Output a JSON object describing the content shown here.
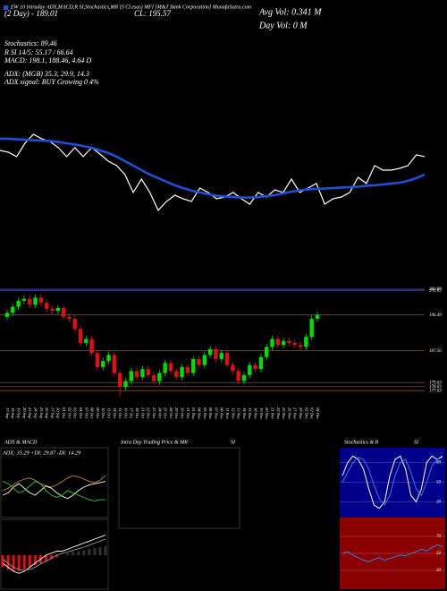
{
  "chart_data": [
    {
      "type": "line",
      "title": "EW 10 Intraday ADX,MACD,R SI,Stochastics,MR (S Cl.esas) MFI [M&T Bank Corporation] MunafaSutra.com",
      "annotations": [
        "(2 Day) - 189.01",
        "CL: 195.57",
        "Avg Vol: 0.341 M",
        "Day Vol: 0 M",
        "Stochastics: 89.46",
        "R SI 14/5: 55.17 / 66.64",
        "MACD: 198.1, 188.46, 4.64 D",
        "ADX: (MGB) 35.3, 29.9, 14.3",
        "ADX signal: BUY Growing 0 4%"
      ],
      "ylim": [
        170,
        205
      ],
      "series": [
        {
          "color": "#ffffff",
          "values": [
            195.2,
            194.5,
            192.8,
            198,
            201.5,
            199.8,
            198.7,
            196.3,
            192.8,
            196.3,
            192.8,
            196.3,
            193.8,
            191,
            189.3,
            185.8,
            178.8,
            184,
            178.8,
            171.8,
            175.3,
            177.7,
            176.3,
            175.3,
            180.5,
            178.8,
            176.3,
            177,
            178.8,
            176.3,
            174.2,
            178.8,
            177,
            179.8,
            178.8,
            184,
            178.8,
            180.5,
            182.3,
            174.2,
            176.3,
            177,
            178.8,
            184.7,
            182.3,
            189.3,
            187.5,
            187.5,
            188.2,
            189.3,
            193.5,
            192.8
          ]
        },
        {
          "color": "#1f4fd8",
          "values": [
            199.8,
            199.8,
            199.6,
            199.4,
            199.2,
            199.1,
            198.9,
            198.5,
            198,
            197.5,
            196.9,
            196.3,
            195.2,
            194.2,
            192.8,
            191,
            189.3,
            187.5,
            185.8,
            184.4,
            183,
            181.6,
            180.5,
            179.5,
            178.8,
            178.1,
            177.5,
            177.2,
            177,
            176.8,
            176.8,
            177,
            177.4,
            177.7,
            178.4,
            179.1,
            179.6,
            180,
            180.2,
            180.3,
            180.5,
            180.7,
            180.9,
            181,
            181.4,
            181.6,
            181.9,
            182.3,
            182.6,
            183.3,
            184.4,
            185.8
          ]
        }
      ]
    },
    {
      "type": "candlestick",
      "categories": [
        "17 Sep",
        "18 Sep",
        "19 Sep",
        "20 Sep",
        "23 Sep",
        "24 Sep",
        "25 Sep",
        "26 Sep",
        "27 Sep",
        "30 Sep",
        "01 Oct",
        "02 Oct",
        "03 Oct",
        "04 Oct",
        "07 Oct",
        "08 Oct",
        "09 Oct",
        "10 Oct",
        "11 Oct",
        "14 Oct",
        "15 Oct",
        "16 Oct",
        "17 Oct",
        "18 Oct",
        "21 Oct",
        "22 Oct",
        "23 Oct",
        "24 Oct",
        "25 Oct",
        "28 Oct",
        "29 Oct",
        "30 Oct",
        "31 Oct",
        "01 Nov",
        "04 Nov",
        "05 Nov",
        "06 Nov",
        "07 Nov",
        "08 Nov",
        "11 Nov",
        "12 Nov",
        "13 Nov",
        "14 Nov",
        "15 Nov",
        "18 Nov",
        "19 Nov",
        "20 Nov",
        "21 Nov",
        "22 Nov",
        "25 Nov",
        "26 Nov",
        "27 Nov",
        "29 Nov",
        "02 Dec",
        "03 Dec",
        "04 Dec"
      ],
      "open": [
        196,
        197,
        198.5,
        200,
        200.5,
        199,
        200.8,
        199.5,
        198,
        197.5,
        198.2,
        196,
        195.5,
        193,
        189.5,
        190.5,
        187,
        183.5,
        185,
        186.5,
        182,
        178.5,
        180,
        182.5,
        181,
        183,
        181.5,
        180,
        182,
        184.5,
        182.5,
        181,
        183.5,
        182,
        185.5,
        184,
        186.5,
        188,
        185.5,
        187,
        184,
        182.5,
        180,
        181.5,
        184,
        183,
        186,
        188.5,
        190.5,
        189,
        190,
        189.5,
        189,
        188.5,
        191,
        195.5
      ],
      "high": [
        197.8,
        199.3,
        200.8,
        201.3,
        201.3,
        201.6,
        201.6,
        200.3,
        198.8,
        199,
        199,
        196.8,
        196.3,
        193.8,
        191.3,
        191.3,
        187.8,
        185.8,
        187.3,
        187.3,
        182.8,
        180.8,
        183.3,
        183.3,
        183.8,
        183.8,
        182.3,
        182.8,
        185.3,
        185.3,
        183.3,
        184.3,
        184.3,
        186.3,
        186.3,
        187.3,
        188.8,
        188.8,
        187.8,
        187.8,
        184.8,
        183.3,
        182.3,
        184.8,
        184.8,
        186.8,
        189.3,
        191.3,
        191.3,
        190.8,
        190.8,
        190.3,
        189.8,
        191.8,
        196.3,
        197.3
      ],
      "low": [
        195.2,
        196.2,
        197.7,
        199.2,
        198.2,
        198.2,
        198.7,
        197.2,
        196.7,
        196.7,
        195.2,
        194.7,
        192.2,
        188.7,
        188.7,
        186.2,
        182.7,
        182.7,
        184.2,
        181.2,
        176.2,
        177.7,
        179.2,
        180.2,
        180.2,
        180.7,
        179.2,
        179.2,
        181.2,
        181.7,
        180.2,
        180.2,
        181.2,
        181.2,
        183.2,
        183.2,
        185.7,
        184.7,
        184.7,
        183.2,
        181.7,
        179.2,
        179.2,
        180.7,
        182.2,
        182.2,
        185.2,
        187.7,
        188.2,
        188.2,
        188.7,
        188.2,
        187.7,
        187.7,
        190.2,
        194.7
      ],
      "close": [
        197,
        198.5,
        200,
        200.5,
        199,
        200.8,
        199.5,
        198,
        197.5,
        198.2,
        196,
        195.5,
        193,
        189.5,
        190.5,
        187,
        183.5,
        185,
        186.5,
        182,
        178.5,
        180,
        182.5,
        181,
        183,
        181.5,
        180,
        182,
        184.5,
        182.5,
        181,
        183.5,
        182,
        185.5,
        184,
        186.5,
        188,
        185.5,
        187,
        184,
        182.5,
        180,
        181.5,
        184,
        183,
        186,
        188.5,
        190.5,
        189,
        190,
        189.5,
        189,
        188.5,
        191,
        195.5,
        196.5
      ],
      "ylim": [
        175,
        204
      ],
      "yticks": [
        202.89,
        202.62,
        196.49,
        187.56,
        179.63,
        178.63,
        177.63
      ],
      "up_color": "#00e000",
      "down_color": "#e01010",
      "grid_color": "#8a4a1a"
    },
    {
      "type": "line",
      "title": "ADX  & MACD",
      "subtitle": "ADX: 35.29 +DI: 29.87 -DI: 14.29",
      "ylim": [
        0,
        50
      ],
      "series": [
        {
          "color": "#c8823c",
          "values": [
            22,
            24,
            27,
            30,
            32,
            33,
            31,
            28,
            26,
            25,
            27,
            30,
            33,
            35,
            34,
            32,
            30,
            29,
            31,
            35
          ]
        },
        {
          "color": "#ffffff",
          "values": [
            18,
            20,
            25,
            28,
            24,
            20,
            18,
            22,
            26,
            24,
            20,
            17,
            15,
            18,
            22,
            25,
            27,
            28,
            29,
            30
          ]
        },
        {
          "color": "#33cc33",
          "values": [
            30,
            28,
            24,
            20,
            22,
            26,
            30,
            28,
            22,
            18,
            16,
            18,
            22,
            20,
            18,
            16,
            14,
            13,
            14,
            14
          ]
        }
      ]
    },
    {
      "type": "macd",
      "ylim": [
        -8,
        8
      ],
      "histogram": [
        -3,
        -3.5,
        -4,
        -4,
        -3.5,
        -3,
        -2.5,
        -2,
        -1.5,
        -1,
        -0.5,
        0,
        0.5,
        0.8,
        1,
        1.2,
        1.5,
        1.8,
        2,
        2.3
      ],
      "histogram_colors": [
        "#e01010",
        "#333333"
      ],
      "series": [
        {
          "color": "#ffffff",
          "values": [
            -2,
            -3,
            -4,
            -4.5,
            -4,
            -3,
            -2,
            -1,
            0,
            0.5,
            1,
            1,
            1.5,
            2,
            2.5,
            3,
            3.5,
            4,
            4.5,
            5
          ]
        },
        {
          "color": "#999999",
          "values": [
            -1,
            -2,
            -3,
            -3.5,
            -3.8,
            -3.5,
            -3,
            -2.2,
            -1.5,
            -0.8,
            0,
            0.5,
            0.8,
            1.2,
            1.6,
            2,
            2.5,
            3,
            3.5,
            4
          ]
        }
      ]
    },
    {
      "type": "panel",
      "title": "Intra Day Trading Price  & MR",
      "title_right": "SI"
    },
    {
      "type": "line",
      "title": "Stochastics & R",
      "title_right": "SI",
      "background": "#00008b",
      "ylim": [
        0,
        100
      ],
      "yticks": [
        80,
        50,
        20
      ],
      "series": [
        {
          "color": "#ffffff",
          "values": [
            60,
            80,
            90,
            85,
            70,
            40,
            15,
            10,
            20,
            60,
            85,
            90,
            70,
            30,
            20,
            40,
            80,
            90,
            85,
            90
          ]
        },
        {
          "color": "#3a7be0",
          "values": [
            50,
            65,
            80,
            88,
            85,
            70,
            45,
            25,
            15,
            30,
            60,
            80,
            85,
            65,
            40,
            30,
            50,
            75,
            85,
            88
          ]
        }
      ]
    },
    {
      "type": "line",
      "background": "#8b0000",
      "ylim": [
        10,
        90
      ],
      "yticks": [
        70,
        50,
        30
      ],
      "series": [
        {
          "color": "#3a7be0",
          "values": [
            50,
            52,
            48,
            45,
            42,
            40,
            43,
            45,
            42,
            44,
            46,
            48,
            47,
            50,
            52,
            55,
            53,
            57,
            60,
            58
          ]
        }
      ]
    }
  ]
}
